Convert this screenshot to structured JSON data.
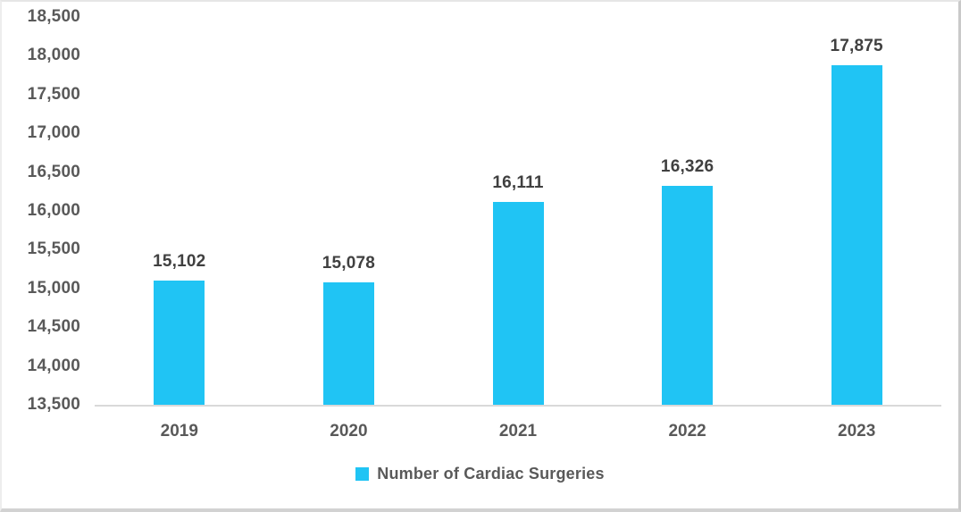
{
  "chart_data": {
    "type": "bar",
    "categories": [
      "2019",
      "2020",
      "2021",
      "2022",
      "2023"
    ],
    "series": [
      {
        "name": "Number of Cardiac Surgeries",
        "values": [
          15102,
          15078,
          16111,
          16326,
          17875
        ]
      }
    ],
    "data_labels": [
      "15,102",
      "15,078",
      "16,111",
      "16,326",
      "17,875"
    ],
    "y_tick_labels": [
      "18,500",
      "18,000",
      "17,500",
      "17,000",
      "16,500",
      "16,000",
      "15,500",
      "15,000",
      "14,500",
      "14,000",
      "13,500"
    ],
    "ylim": [
      13500,
      18500
    ],
    "y_step": 500,
    "title": "",
    "xlabel": "",
    "ylabel": "",
    "grid": false,
    "legend_position": "bottom",
    "legend_label": "Number of Cardiac Surgeries",
    "colors": {
      "bar": "#20C4F4",
      "axis_line": "#D9D9D9",
      "axis_tick_text": "#595959",
      "data_label_text": "#404040",
      "legend_text": "#595959"
    }
  }
}
